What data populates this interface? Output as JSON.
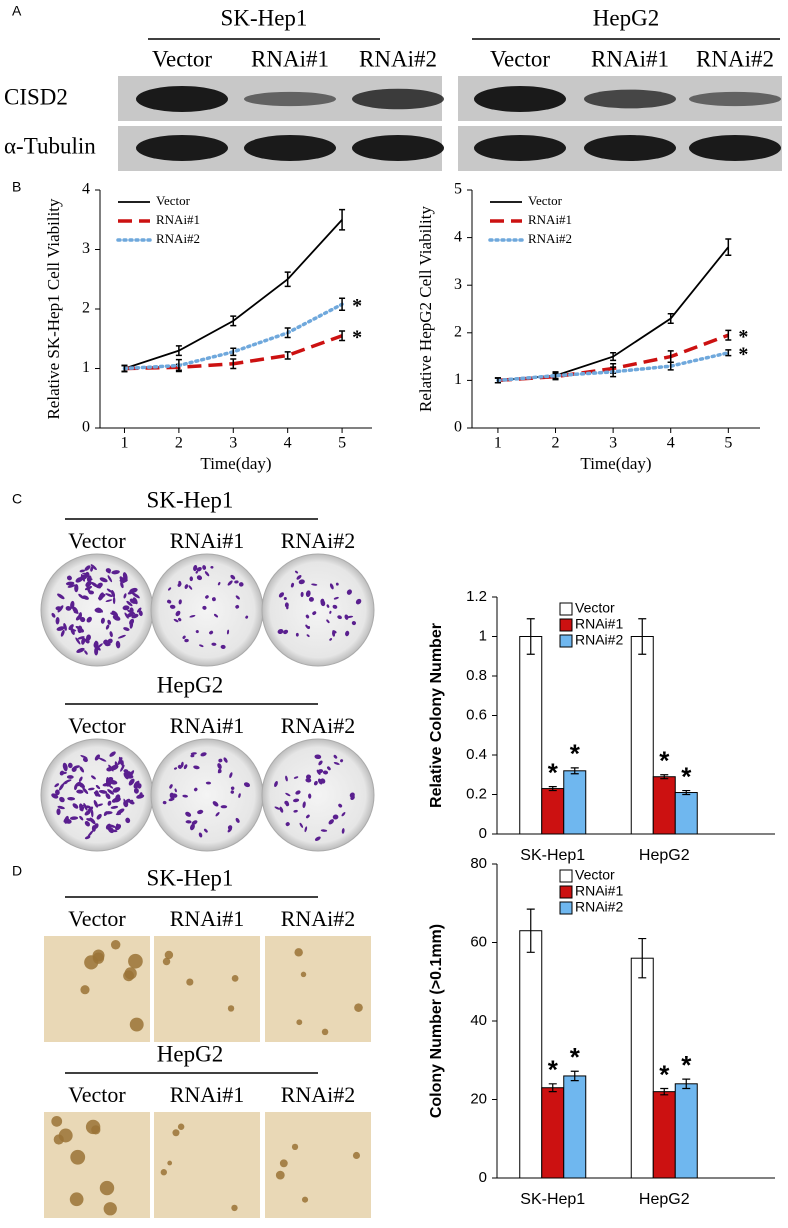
{
  "panel_labels": [
    "A",
    "B",
    "C",
    "D"
  ],
  "western_blot": {
    "cell_lines": [
      "SK-Hep1",
      "HepG2"
    ],
    "lanes": [
      "Vector",
      "RNAi#1",
      "RNAi#2"
    ],
    "rows": [
      "CISD2",
      "α-Tubulin"
    ]
  },
  "colony_formation": {
    "cell_lines": [
      "SK-Hep1",
      "HepG2"
    ],
    "lanes": [
      "Vector",
      "RNAi#1",
      "RNAi#2"
    ]
  },
  "soft_agar": {
    "cell_lines": [
      "SK-Hep1",
      "HepG2"
    ],
    "lanes": [
      "Vector",
      "RNAi#1",
      "RNAi#2"
    ]
  },
  "chart_data": [
    {
      "type": "line",
      "xlabel": "Time(day)",
      "ylabel": "Relative SK-Hep1 Cell Viability",
      "x": [
        1,
        2,
        3,
        4,
        5
      ],
      "xlim": [
        0.55,
        5.55
      ],
      "xticks": [
        1,
        2,
        3,
        4,
        5
      ],
      "ylim": [
        0,
        4
      ],
      "yticks": [
        0,
        1,
        2,
        3,
        4
      ],
      "legend": "upper left",
      "series": [
        {
          "name": "Vector",
          "color": "#000000",
          "style": "solid",
          "values": [
            1,
            1.3,
            1.8,
            2.5,
            3.5
          ],
          "errors": [
            0.05,
            0.08,
            0.08,
            0.12,
            0.17
          ],
          "significance": [
            null,
            null,
            null,
            null,
            null
          ]
        },
        {
          "name": "RNAi#1",
          "color": "#cc1111",
          "style": "dashed",
          "values": [
            1,
            1.02,
            1.08,
            1.22,
            1.55
          ],
          "errors": [
            0.05,
            0.05,
            0.08,
            0.06,
            0.08
          ],
          "significance": [
            null,
            null,
            null,
            null,
            "*"
          ]
        },
        {
          "name": "RNAi#2",
          "color": "#6fa8dc",
          "style": "dotted",
          "values": [
            1,
            1.05,
            1.28,
            1.6,
            2.08
          ],
          "errors": [
            0.05,
            0.1,
            0.06,
            0.08,
            0.1
          ],
          "significance": [
            null,
            null,
            null,
            null,
            "*"
          ]
        }
      ]
    },
    {
      "type": "line",
      "xlabel": "Time(day)",
      "ylabel": "Relative HepG2 Cell Viability",
      "x": [
        1,
        2,
        3,
        4,
        5
      ],
      "xlim": [
        0.55,
        5.55
      ],
      "xticks": [
        1,
        2,
        3,
        4,
        5
      ],
      "ylim": [
        0,
        5
      ],
      "yticks": [
        0,
        1,
        2,
        3,
        4,
        5
      ],
      "legend": "upper left",
      "series": [
        {
          "name": "Vector",
          "color": "#000000",
          "style": "solid",
          "values": [
            1,
            1.1,
            1.5,
            2.3,
            3.8
          ],
          "errors": [
            0.05,
            0.08,
            0.08,
            0.1,
            0.17
          ],
          "significance": [
            null,
            null,
            null,
            null,
            null
          ]
        },
        {
          "name": "RNAi#1",
          "color": "#cc1111",
          "style": "dashed",
          "values": [
            1,
            1.08,
            1.25,
            1.5,
            1.95
          ],
          "errors": [
            0.05,
            0.06,
            0.1,
            0.12,
            0.1
          ],
          "significance": [
            null,
            null,
            null,
            null,
            "*"
          ]
        },
        {
          "name": "RNAi#2",
          "color": "#6fa8dc",
          "style": "dotted",
          "values": [
            1,
            1.1,
            1.18,
            1.3,
            1.58
          ],
          "errors": [
            0.05,
            0.06,
            0.1,
            0.08,
            0.06
          ],
          "significance": [
            null,
            null,
            null,
            null,
            "*"
          ]
        }
      ]
    },
    {
      "type": "bar",
      "ylabel": "Relative Colony Number",
      "categories": [
        "SK-Hep1",
        "HepG2"
      ],
      "ylim": [
        0,
        1.2
      ],
      "yticks": [
        0,
        0.2,
        0.4,
        0.6,
        0.8,
        1,
        1.2
      ],
      "legend": "upper center",
      "series": [
        {
          "name": "Vector",
          "color": "#ffffff",
          "values": [
            1,
            1
          ],
          "errors": [
            0.09,
            0.09
          ],
          "significance": [
            null,
            null
          ]
        },
        {
          "name": "RNAi#1",
          "color": "#cc1111",
          "values": [
            0.23,
            0.29
          ],
          "errors": [
            0.01,
            0.01
          ],
          "significance": [
            "*",
            "*"
          ]
        },
        {
          "name": "RNAi#2",
          "color": "#6fb7ef",
          "values": [
            0.32,
            0.21
          ],
          "errors": [
            0.015,
            0.01
          ],
          "significance": [
            "*",
            "*"
          ]
        }
      ]
    },
    {
      "type": "bar",
      "ylabel": "Colony Number (>0.1mm)",
      "categories": [
        "SK-Hep1",
        "HepG2"
      ],
      "ylim": [
        0,
        80
      ],
      "yticks": [
        0,
        20,
        40,
        60,
        80
      ],
      "legend": "upper center",
      "series": [
        {
          "name": "Vector",
          "color": "#ffffff",
          "values": [
            63,
            56
          ],
          "errors": [
            5.5,
            5
          ],
          "significance": [
            null,
            null
          ]
        },
        {
          "name": "RNAi#1",
          "color": "#cc1111",
          "values": [
            23,
            22
          ],
          "errors": [
            1,
            0.8
          ],
          "significance": [
            "*",
            "*"
          ]
        },
        {
          "name": "RNAi#2",
          "color": "#6fb7ef",
          "values": [
            26,
            24
          ],
          "errors": [
            1.2,
            1.2
          ],
          "significance": [
            "*",
            "*"
          ]
        }
      ]
    }
  ]
}
